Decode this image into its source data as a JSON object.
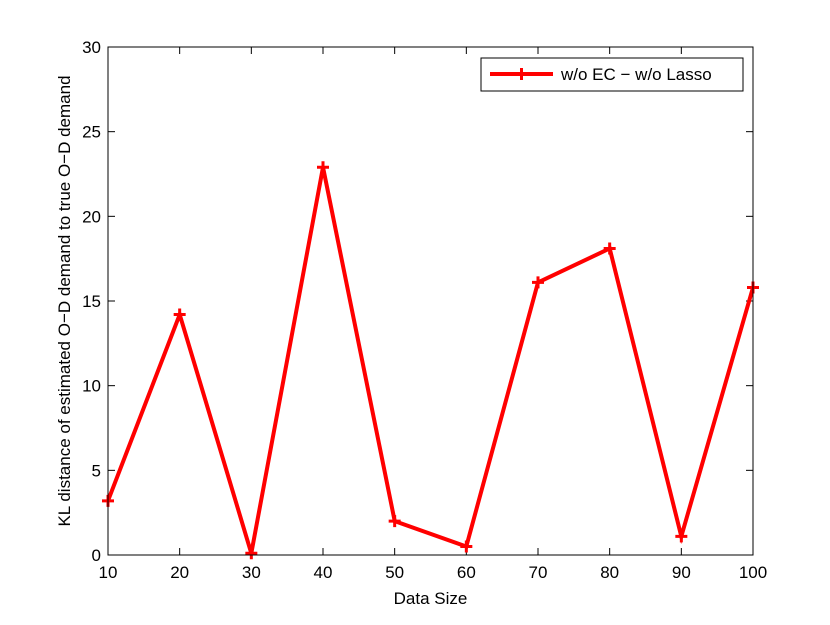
{
  "chart_data": {
    "type": "line",
    "title": "",
    "xlabel": "Data Size",
    "ylabel": "KL distance of estimated O−D demand to true O−D demand",
    "xlim": [
      10,
      100
    ],
    "ylim": [
      0,
      30
    ],
    "xticks": [
      10,
      20,
      30,
      40,
      50,
      60,
      70,
      80,
      90,
      100
    ],
    "yticks": [
      0,
      5,
      10,
      15,
      20,
      25,
      30
    ],
    "grid": false,
    "legend_position": "top-right",
    "series": [
      {
        "name": "w/o EC − w/o Lasso",
        "color": "#ff0000",
        "marker": "plus",
        "x": [
          10,
          20,
          30,
          40,
          50,
          60,
          70,
          80,
          90,
          100
        ],
        "y": [
          3.2,
          14.2,
          0.1,
          22.9,
          2.0,
          0.5,
          16.1,
          18.1,
          1.1,
          15.8
        ]
      }
    ]
  }
}
